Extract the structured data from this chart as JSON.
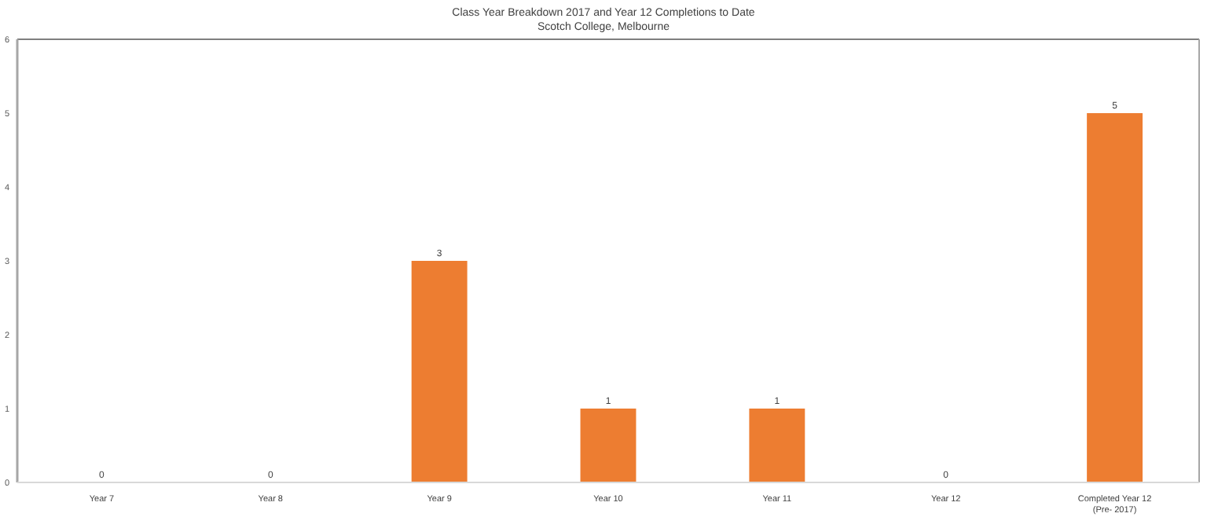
{
  "chart_data": {
    "type": "bar",
    "title": "Class Year Breakdown 2017 and Year 12 Completions to Date",
    "subtitle": "Scotch College, Melbourne",
    "categories": [
      "Year 7",
      "Year 8",
      "Year 9",
      "Year 10",
      "Year 11",
      "Year 12",
      "Completed Year 12\n(Pre- 2017)"
    ],
    "values": [
      0,
      0,
      3,
      1,
      1,
      0,
      5
    ],
    "color": "#ed7d31",
    "ylim": [
      0,
      6
    ],
    "yticks": [
      0,
      1,
      2,
      3,
      4,
      5,
      6
    ],
    "grid": false,
    "data_labels": true
  }
}
